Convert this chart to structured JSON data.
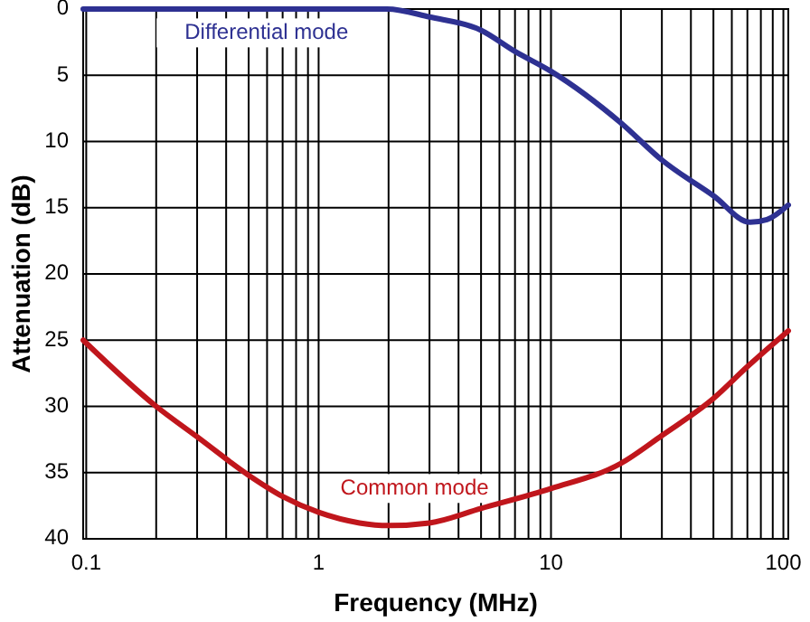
{
  "chart_data": {
    "type": "line",
    "xlabel": "Frequency (MHz)",
    "ylabel": "Attenuation (dB)",
    "log": "x",
    "grid": true,
    "legend": false,
    "marker": "none",
    "line_style": "solid",
    "xlim": [
      0.097,
      105
    ],
    "xticks": [
      0.1,
      1,
      10,
      100
    ],
    "ylim": [
      40,
      0
    ],
    "yticks": [
      0,
      5,
      10,
      15,
      20,
      25,
      30,
      35,
      40
    ],
    "series": [
      {
        "name": "Differential mode",
        "color": "#2e3192",
        "x": [
          0.097,
          0.5,
          1,
          1.97,
          3,
          5,
          7,
          10,
          20,
          30,
          50,
          72,
          85,
          105
        ],
        "values": [
          0,
          0,
          0,
          0,
          0.6,
          1.6,
          3.2,
          4.7,
          8.6,
          11.4,
          14.1,
          16.1,
          15.9,
          14.8
        ]
      },
      {
        "name": "Common mode",
        "color": "#c0161c",
        "x": [
          0.097,
          0.2,
          0.3,
          0.5,
          0.7,
          1,
          1.5,
          2,
          3,
          5,
          10,
          20,
          30,
          50,
          70,
          105
        ],
        "values": [
          25,
          30,
          32.3,
          35.2,
          36.8,
          38,
          38.8,
          39,
          38.8,
          37.7,
          36.2,
          34.3,
          32.2,
          29.4,
          27,
          24.3
        ]
      }
    ]
  }
}
